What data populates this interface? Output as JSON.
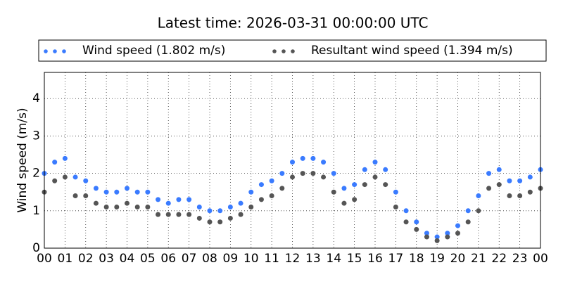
{
  "chart_data": {
    "type": "scatter",
    "title": "Latest time: 2026-03-31 00:00:00 UTC",
    "y_label": "Wind speed (m/s)",
    "x": [
      0,
      0.5,
      1,
      1.5,
      2,
      2.5,
      3,
      3.5,
      4,
      4.5,
      5,
      5.5,
      6,
      6.5,
      7,
      7.5,
      8,
      8.5,
      9,
      9.5,
      10,
      10.5,
      11,
      11.5,
      12,
      12.5,
      13,
      13.5,
      14,
      14.5,
      15,
      15.5,
      16,
      16.5,
      17,
      17.5,
      18,
      18.5,
      19,
      19.5,
      20,
      20.5,
      21,
      21.5,
      22,
      22.5,
      23,
      23.5,
      24
    ],
    "series": [
      {
        "name": "Wind speed (1.802 m/s)",
        "color": "#3a7bff",
        "values": [
          2.0,
          2.3,
          2.4,
          1.9,
          1.8,
          1.6,
          1.5,
          1.5,
          1.6,
          1.5,
          1.5,
          1.3,
          1.2,
          1.3,
          1.3,
          1.1,
          1.0,
          1.0,
          1.1,
          1.2,
          1.5,
          1.7,
          1.8,
          2.0,
          2.3,
          2.4,
          2.4,
          2.3,
          2.0,
          1.6,
          1.7,
          2.1,
          2.3,
          2.1,
          1.5,
          1.0,
          0.7,
          0.4,
          0.3,
          0.4,
          0.6,
          1.0,
          1.4,
          2.0,
          2.1,
          1.8,
          1.8,
          1.9,
          2.1
        ]
      },
      {
        "name": "Resultant wind speed (1.394 m/s)",
        "color": "#555555",
        "values": [
          1.5,
          1.8,
          1.9,
          1.4,
          1.4,
          1.2,
          1.1,
          1.1,
          1.2,
          1.1,
          1.1,
          0.9,
          0.9,
          0.9,
          0.9,
          0.8,
          0.7,
          0.7,
          0.8,
          0.9,
          1.1,
          1.3,
          1.4,
          1.6,
          1.9,
          2.0,
          2.0,
          1.9,
          1.5,
          1.2,
          1.3,
          1.7,
          1.9,
          1.7,
          1.1,
          0.7,
          0.5,
          0.3,
          0.2,
          0.3,
          0.4,
          0.7,
          1.0,
          1.6,
          1.7,
          1.4,
          1.4,
          1.5,
          1.6
        ]
      }
    ],
    "xlim": [
      0,
      24
    ],
    "xticks": [
      {
        "value": 0,
        "label": "00"
      },
      {
        "value": 1,
        "label": "01"
      },
      {
        "value": 2,
        "label": "02"
      },
      {
        "value": 3,
        "label": "03"
      },
      {
        "value": 4,
        "label": "04"
      },
      {
        "value": 5,
        "label": "05"
      },
      {
        "value": 6,
        "label": "06"
      },
      {
        "value": 7,
        "label": "07"
      },
      {
        "value": 8,
        "label": "08"
      },
      {
        "value": 9,
        "label": "09"
      },
      {
        "value": 10,
        "label": "10"
      },
      {
        "value": 11,
        "label": "11"
      },
      {
        "value": 12,
        "label": "12"
      },
      {
        "value": 13,
        "label": "13"
      },
      {
        "value": 14,
        "label": "14"
      },
      {
        "value": 15,
        "label": "15"
      },
      {
        "value": 16,
        "label": "16"
      },
      {
        "value": 17,
        "label": "17"
      },
      {
        "value": 18,
        "label": "18"
      },
      {
        "value": 19,
        "label": "19"
      },
      {
        "value": 20,
        "label": "20"
      },
      {
        "value": 21,
        "label": "21"
      },
      {
        "value": 22,
        "label": "22"
      },
      {
        "value": 23,
        "label": "23"
      },
      {
        "value": 24,
        "label": "00"
      }
    ],
    "ylim": [
      0,
      4.7
    ],
    "yticks": [
      0,
      1,
      2,
      3,
      4
    ],
    "grid": true
  }
}
